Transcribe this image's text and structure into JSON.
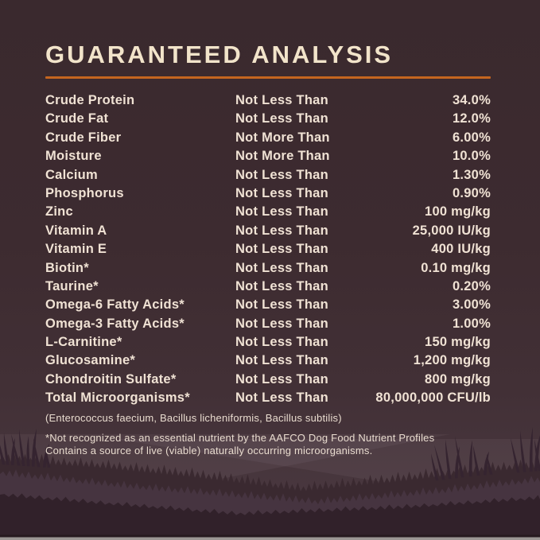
{
  "header": {
    "title": "GUARANTEED ANALYSIS"
  },
  "colors": {
    "background_top": "#3a292e",
    "background_bottom": "#4b3a42",
    "accent_orange": "#c4651f",
    "text_cream": "#f0e2d4",
    "grass_silhouette": "#33222a"
  },
  "analysis_table": {
    "rows": [
      {
        "nutrient": "Crude Protein",
        "qualifier": "Not Less Than",
        "value": "34.0%"
      },
      {
        "nutrient": "Crude Fat",
        "qualifier": "Not Less Than",
        "value": "12.0%"
      },
      {
        "nutrient": "Crude Fiber",
        "qualifier": "Not More Than",
        "value": "6.00%"
      },
      {
        "nutrient": "Moisture",
        "qualifier": "Not More Than",
        "value": "10.0%"
      },
      {
        "nutrient": "Calcium",
        "qualifier": "Not Less Than",
        "value": "1.30%"
      },
      {
        "nutrient": "Phosphorus",
        "qualifier": "Not Less Than",
        "value": "0.90%"
      },
      {
        "nutrient": "Zinc",
        "qualifier": "Not Less Than",
        "value": "100 mg/kg"
      },
      {
        "nutrient": "Vitamin A",
        "qualifier": "Not Less Than",
        "value": "25,000 IU/kg"
      },
      {
        "nutrient": "Vitamin E",
        "qualifier": "Not Less Than",
        "value": "400 IU/kg"
      },
      {
        "nutrient": "Biotin*",
        "qualifier": "Not Less Than",
        "value": "0.10 mg/kg"
      },
      {
        "nutrient": "Taurine*",
        "qualifier": "Not Less Than",
        "value": "0.20%"
      },
      {
        "nutrient": "Omega-6 Fatty Acids*",
        "qualifier": "Not Less Than",
        "value": "3.00%"
      },
      {
        "nutrient": "Omega-3 Fatty Acids*",
        "qualifier": "Not Less Than",
        "value": "1.00%"
      },
      {
        "nutrient": "L-Carnitine*",
        "qualifier": "Not Less Than",
        "value": "150 mg/kg"
      },
      {
        "nutrient": "Glucosamine*",
        "qualifier": "Not Less Than",
        "value": "1,200 mg/kg"
      },
      {
        "nutrient": "Chondroitin Sulfate*",
        "qualifier": "Not Less Than",
        "value": "800 mg/kg"
      },
      {
        "nutrient": "Total Microorganisms*",
        "qualifier": "Not Less Than",
        "value": "80,000,000 CFU/lb"
      }
    ]
  },
  "notes": {
    "microorganism_list": "(Enterococcus faecium, Bacillus licheniformis, Bacillus subtilis)",
    "footnote_line1": "*Not recognized as an essential nutrient by the AAFCO Dog Food Nutrient Profiles",
    "footnote_line2": "Contains a source of live (viable) naturally occurring microorganisms."
  }
}
